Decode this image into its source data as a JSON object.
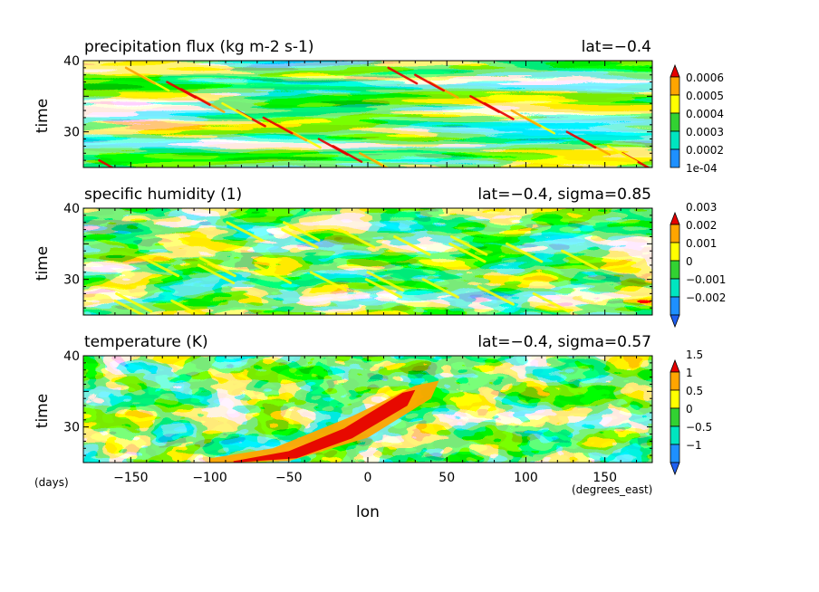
{
  "chart_data": [
    {
      "type": "heatmap",
      "title": "precipitation flux (kg m-2 s-1)",
      "subtitle": "lat=-0.4",
      "ylabel": "time",
      "xlim": [
        -180,
        180
      ],
      "ylim": [
        25,
        40
      ],
      "yticks": [
        30,
        40
      ],
      "colorbar": {
        "labels": [
          "1e-04",
          "0.0002",
          "0.0003",
          "0.0004",
          "0.0005",
          "0.0006"
        ],
        "colors": [
          "#ffffff",
          "#1e90ff",
          "#00e5c0",
          "#32d232",
          "#ffff00",
          "#ffa500",
          "#e60000"
        ]
      }
    },
    {
      "type": "heatmap",
      "title": "specific humidity (1)",
      "subtitle": "lat=-0.4, sigma=0.85",
      "ylabel": "time",
      "xlim": [
        -180,
        180
      ],
      "ylim": [
        25,
        40
      ],
      "yticks": [
        30,
        40
      ],
      "colorbar": {
        "labels": [
          "-0.002",
          "-0.001",
          "0",
          "0.001",
          "0.002",
          "0.003"
        ],
        "colors": [
          "#1e5ff0",
          "#1e90ff",
          "#00e5c0",
          "#32d232",
          "#ffff00",
          "#ffa500",
          "#e60000"
        ]
      }
    },
    {
      "type": "heatmap",
      "title": "temperature (K)",
      "subtitle": "lat=-0.4, sigma=0.57",
      "ylabel": "time",
      "xlim": [
        -180,
        180
      ],
      "ylim": [
        25,
        40
      ],
      "yticks": [
        30,
        40
      ],
      "colorbar": {
        "labels": [
          "-1",
          "-0.5",
          "0",
          "0.5",
          "1",
          "1.5"
        ],
        "colors": [
          "#1e5ff0",
          "#1e90ff",
          "#00e5c0",
          "#32d232",
          "#ffff00",
          "#ffa500",
          "#e60000"
        ]
      }
    }
  ],
  "axis": {
    "xticks": [
      -150,
      -100,
      -50,
      0,
      50,
      100,
      150
    ],
    "xlabel": "lon",
    "x_units": "(degrees_east)",
    "y_units": "(days)"
  }
}
